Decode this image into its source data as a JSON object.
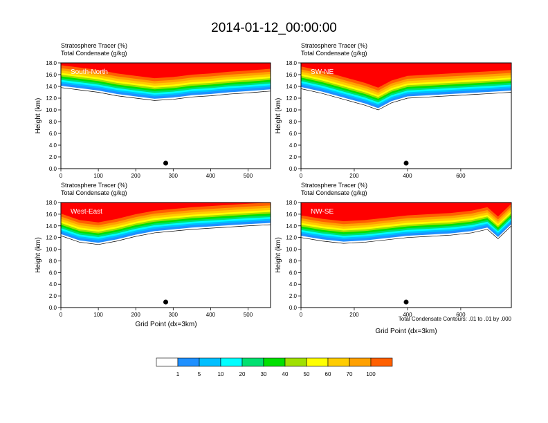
{
  "title": "2014-01-12_00:00:00",
  "chart_data": {
    "type": "heatmap",
    "title": "2014-01-12_00:00:00",
    "fill_variable": "Stratosphere Tracer",
    "fill_units": "(%)",
    "contour_variable": "Total Condensate",
    "contour_units": "(g/kg)",
    "ylabel": "Height (km)",
    "xlabel": "Grid Point (dx=3km)",
    "ylim": [
      0,
      18
    ],
    "yticks": [
      "0.0",
      "2.0",
      "4.0",
      "6.0",
      "8.0",
      "10.0",
      "12.0",
      "14.0",
      "16.0",
      "18.0"
    ],
    "contour_note": "Total Condensate Contours: .01 to .01 by .000",
    "colorbar": {
      "levels": [
        "1",
        "5",
        "10",
        "20",
        "30",
        "40",
        "50",
        "60",
        "70",
        "100"
      ],
      "colors": [
        "#ffffff",
        "#1e90ff",
        "#00bfff",
        "#00ffff",
        "#00e070",
        "#00e000",
        "#a0e000",
        "#ffff00",
        "#ffcc00",
        "#ffa000",
        "#ff6000",
        "#ff0000"
      ]
    },
    "panels": [
      {
        "name": "South-North",
        "xlim": [
          0,
          560
        ],
        "xticks": [
          "0",
          "100",
          "200",
          "300",
          "400",
          "500"
        ],
        "marker_x": 280,
        "tropopause_km": {
          "x": [
            0,
            50,
            100,
            150,
            200,
            250,
            300,
            350,
            400,
            450,
            500,
            560
          ],
          "y": [
            15.0,
            14.6,
            14.2,
            13.6,
            13.2,
            12.8,
            13.0,
            13.4,
            13.6,
            13.9,
            14.1,
            14.4
          ]
        }
      },
      {
        "name": "SW-NE",
        "xlim": [
          0,
          790
        ],
        "xticks": [
          "0",
          "200",
          "400",
          "600"
        ],
        "marker_x": 395,
        "tropopause_km": {
          "x": [
            0,
            80,
            160,
            240,
            290,
            340,
            400,
            480,
            560,
            640,
            720,
            790
          ],
          "y": [
            14.8,
            14.0,
            13.0,
            12.0,
            11.2,
            12.4,
            13.2,
            13.4,
            13.6,
            13.8,
            14.0,
            14.2
          ]
        }
      },
      {
        "name": "West-East",
        "xlim": [
          0,
          560
        ],
        "xticks": [
          "0",
          "100",
          "200",
          "300",
          "400",
          "500"
        ],
        "marker_x": 280,
        "tropopause_km": {
          "x": [
            0,
            50,
            100,
            150,
            200,
            250,
            300,
            350,
            400,
            450,
            500,
            560
          ],
          "y": [
            13.5,
            12.4,
            12.0,
            12.6,
            13.4,
            14.0,
            14.3,
            14.6,
            14.8,
            15.0,
            15.2,
            15.4
          ]
        }
      },
      {
        "name": "NW-SE",
        "xlim": [
          0,
          790
        ],
        "xticks": [
          "0",
          "200",
          "400",
          "600"
        ],
        "marker_x": 395,
        "tropopause_km": {
          "x": [
            0,
            80,
            160,
            240,
            320,
            400,
            480,
            560,
            640,
            700,
            740,
            790
          ],
          "y": [
            13.2,
            12.6,
            12.2,
            12.4,
            12.8,
            13.2,
            13.4,
            13.6,
            14.0,
            14.6,
            13.0,
            15.2
          ]
        }
      }
    ]
  }
}
